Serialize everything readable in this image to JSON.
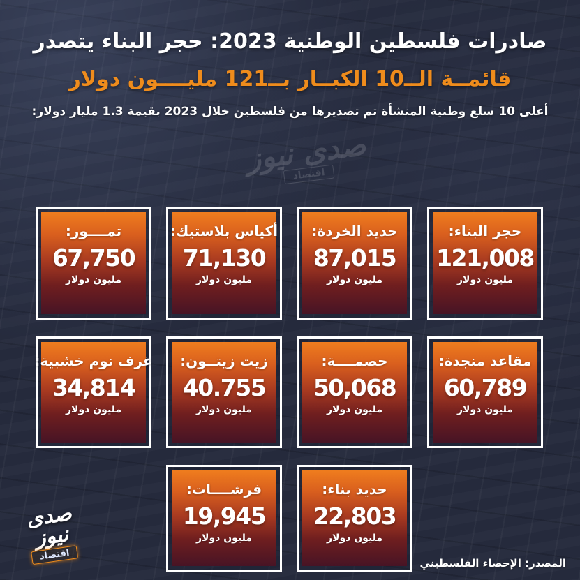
{
  "header": {
    "title_line1": "صادرات فلسطين الوطنية 2023: حجر البناء يتصدر",
    "title_line2": "قائمــة الــ10 الكبــار بــ121 مليــــون دولار",
    "subtitle": "أعلى 10 سلع وطنية المنشأة تم تصديرها من فلسطين خلال 2023 بقيمة 1.3 مليار دولار:"
  },
  "cards": [
    {
      "label": "حجر البناء:",
      "value": "121,008",
      "unit": "مليون دولار"
    },
    {
      "label": "حديد الخردة:",
      "value": "87,015",
      "unit": "مليون دولار"
    },
    {
      "label": "أكياس بلاستيك:",
      "value": "71,130",
      "unit": "مليون دولار"
    },
    {
      "label": "تمــــور:",
      "value": "67,750",
      "unit": "مليون دولار"
    },
    {
      "label": "مقاعد منجدة:",
      "value": "60,789",
      "unit": "مليون دولار"
    },
    {
      "label": "حصمــــة:",
      "value": "50,068",
      "unit": "مليون دولار"
    },
    {
      "label": "زيت زيتــون:",
      "value": "40.755",
      "unit": "مليون دولار"
    },
    {
      "label": "غرف نوم خشبية:",
      "value": "34,814",
      "unit": "مليون دولار"
    },
    {
      "label": "حديد بناء:",
      "value": "22,803",
      "unit": "مليون دولار"
    },
    {
      "label": "فرشــــات:",
      "value": "19,945",
      "unit": "مليون دولار"
    }
  ],
  "watermark": {
    "brand": "صدى نيوز",
    "section": "اقتصاد"
  },
  "logo": {
    "brand": "صدى نيوز",
    "section": "اقتصاد"
  },
  "source": {
    "text": "المصدر: الإحصاء الفلسطيني"
  },
  "colors": {
    "background": "#252a3c",
    "accent_orange": "#ef8c1c",
    "card_gradient_top": "#ef7d1e",
    "card_gradient_bottom": "#471425",
    "card_border": "#ffffff",
    "text": "#ffffff"
  },
  "chart_data": {
    "type": "table",
    "title": "صادرات فلسطين الوطنية 2023: حجر البناء يتصدر قائمة الـ10 الكبار بـ121 مليون دولار",
    "subtitle": "أعلى 10 سلع وطنية المنشأة تم تصديرها من فلسطين خلال 2023 بقيمة 1.3 مليار دولار",
    "categories": [
      "حجر البناء",
      "حديد الخردة",
      "أكياس بلاستيك",
      "تمور",
      "مقاعد منجدة",
      "حصمة",
      "زيت زيتون",
      "غرف نوم خشبية",
      "حديد بناء",
      "فرشات"
    ],
    "values": [
      121008,
      87015,
      71130,
      67750,
      60789,
      50068,
      40755,
      34814,
      22803,
      19945
    ],
    "value_labels": [
      "121,008",
      "87,015",
      "71,130",
      "67,750",
      "60,789",
      "50,068",
      "40.755",
      "34,814",
      "22,803",
      "19,945"
    ],
    "unit": "مليون دولار",
    "source": "الإحصاء الفلسطيني",
    "year": "2023",
    "total_note": "1.3 مليار دولار"
  }
}
